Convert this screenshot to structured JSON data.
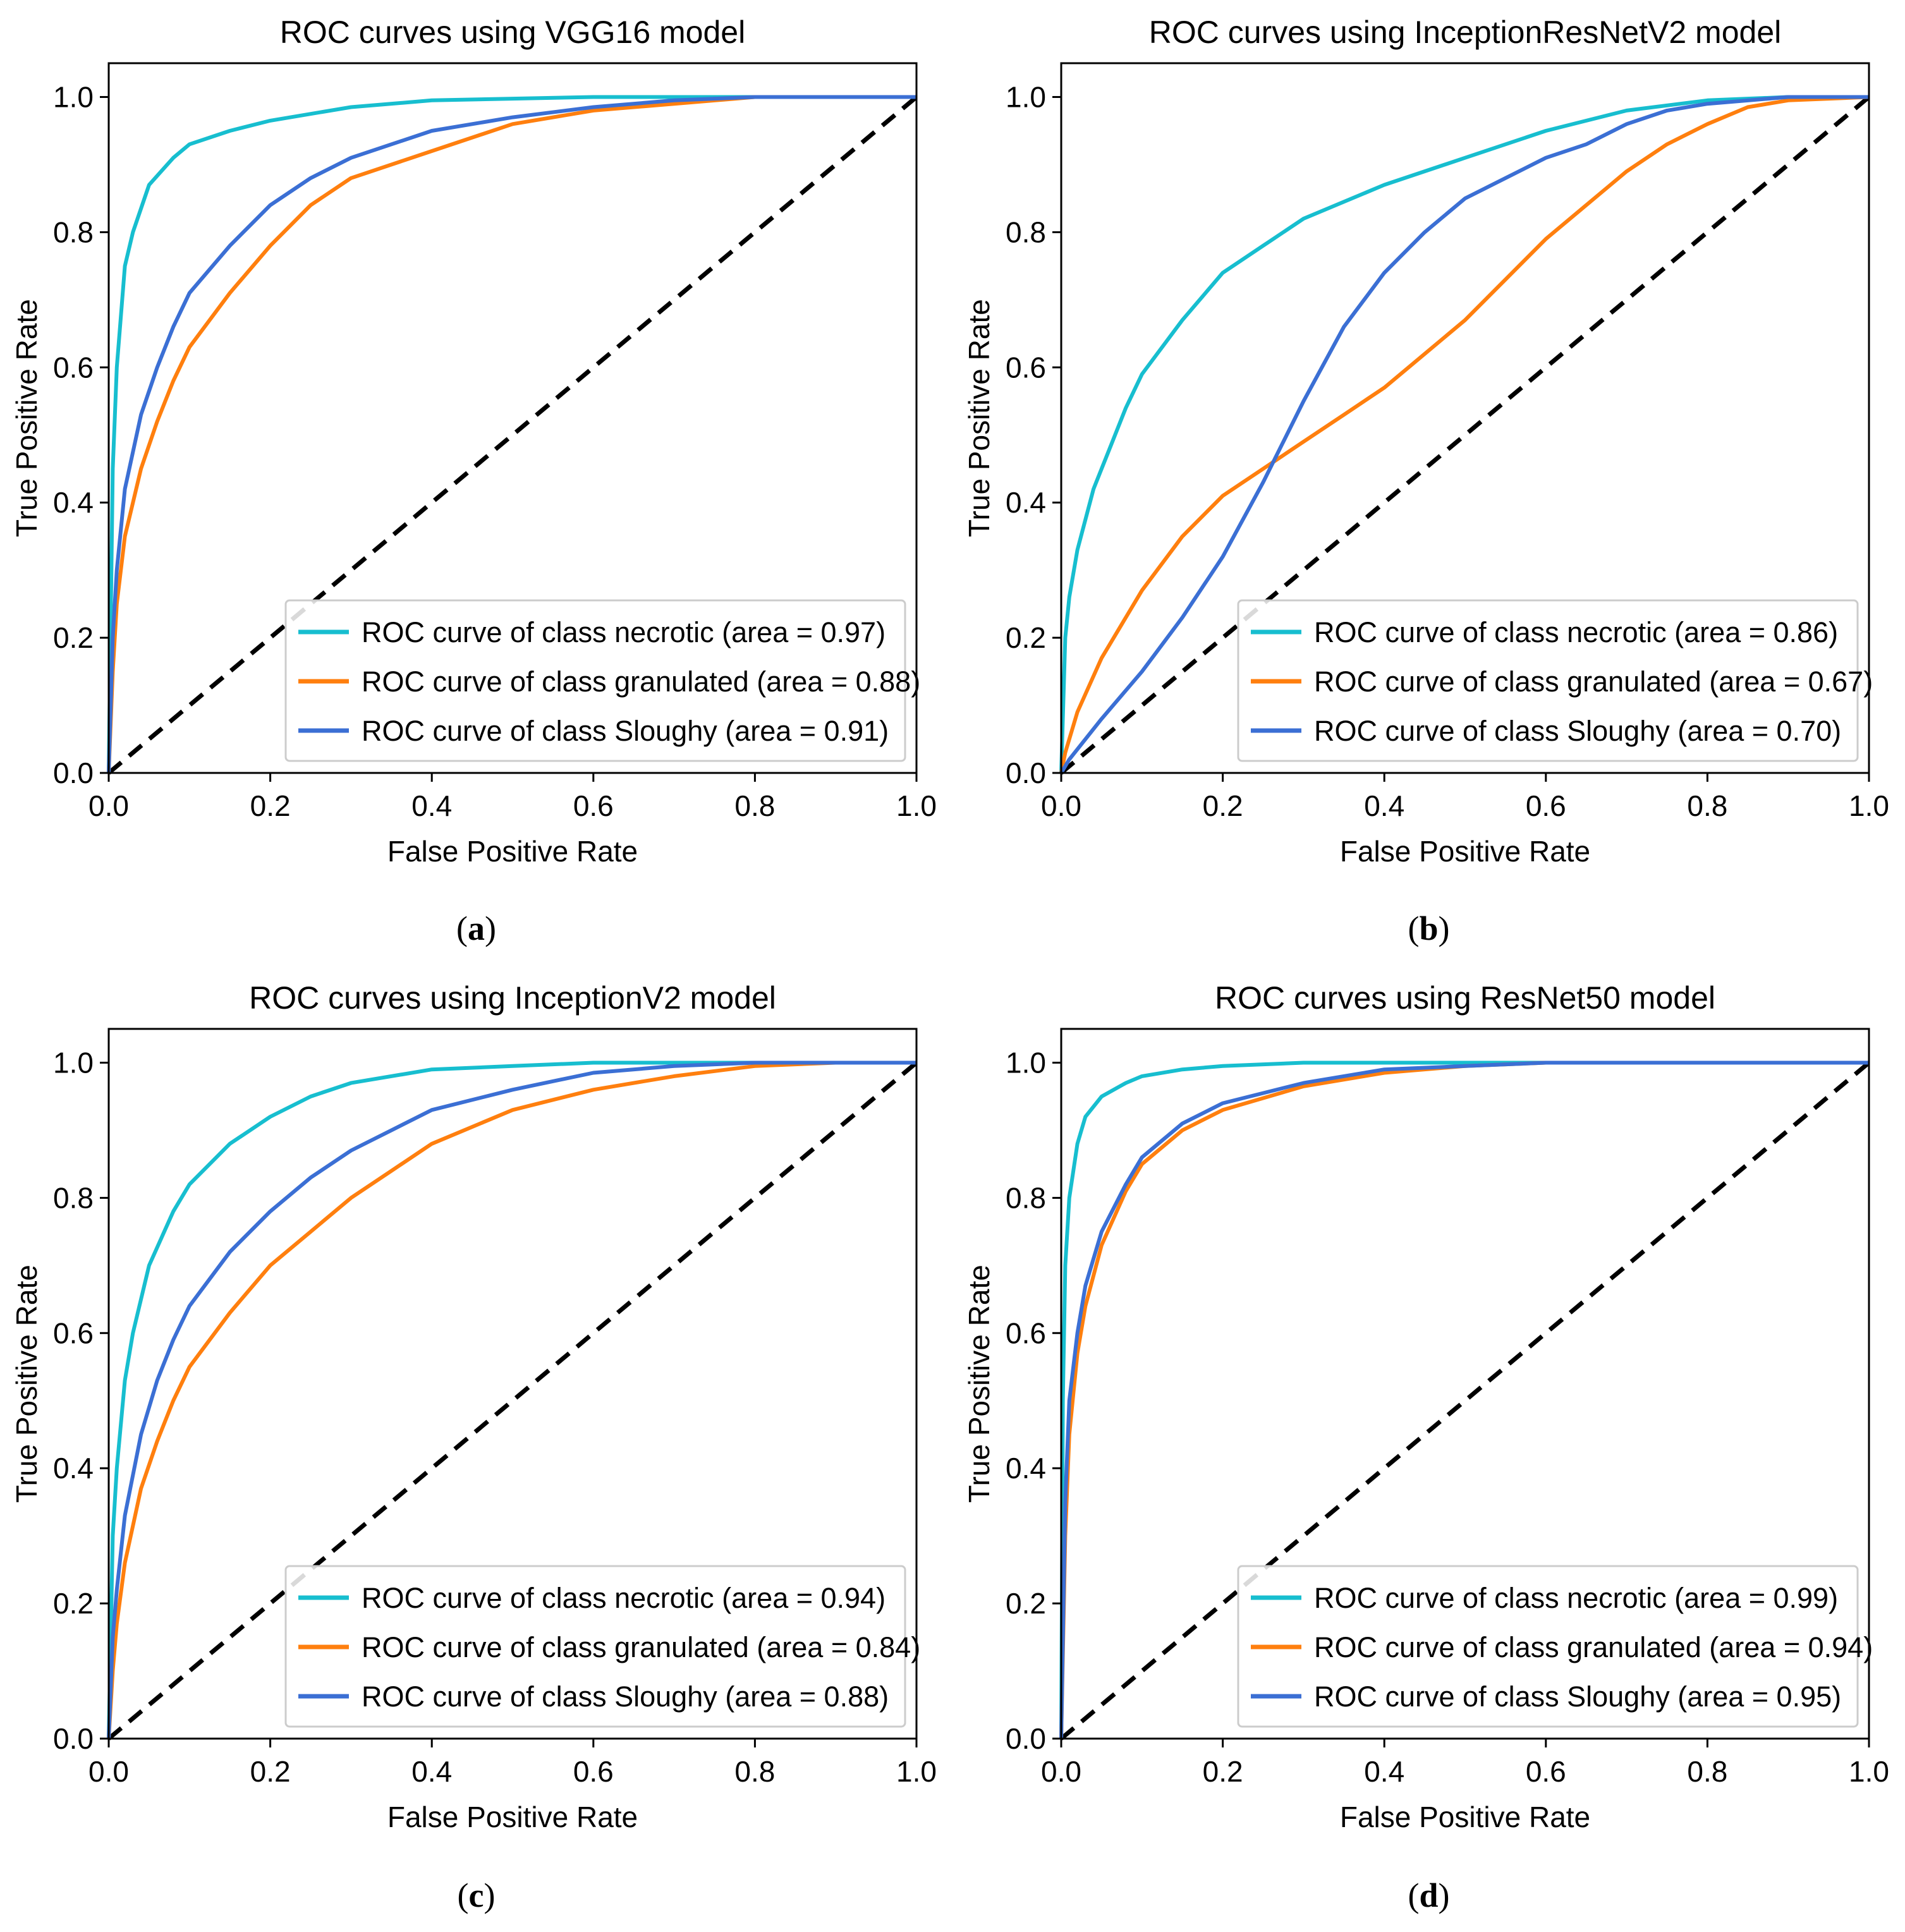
{
  "chart_data": [
    {
      "type": "line",
      "title": "ROC curves using VGG16 model",
      "xlabel": "False Positive Rate",
      "ylabel": "True Positive Rate",
      "xlim": [
        0,
        1
      ],
      "ylim": [
        0,
        1.05
      ],
      "xticks": [
        "0.0",
        "0.2",
        "0.4",
        "0.6",
        "0.8",
        "1.0"
      ],
      "yticks": [
        "0.0",
        "0.2",
        "0.4",
        "0.6",
        "0.8",
        "1.0"
      ],
      "caption": "a",
      "legend_position": "lower right",
      "series": [
        {
          "name": "ROC curve of class necrotic (area = 0.97)",
          "color": "#17becf",
          "x": [
            0,
            0.005,
            0.01,
            0.02,
            0.03,
            0.05,
            0.08,
            0.1,
            0.15,
            0.2,
            0.3,
            0.4,
            0.6,
            0.8,
            1.0
          ],
          "y": [
            0,
            0.45,
            0.6,
            0.75,
            0.8,
            0.87,
            0.91,
            0.93,
            0.95,
            0.965,
            0.985,
            0.995,
            1.0,
            1.0,
            1.0
          ]
        },
        {
          "name": "ROC curve of class granulated (area = 0.88)",
          "color": "#ff7f0e",
          "x": [
            0,
            0.005,
            0.01,
            0.02,
            0.04,
            0.06,
            0.08,
            0.1,
            0.15,
            0.2,
            0.25,
            0.3,
            0.4,
            0.5,
            0.6,
            0.7,
            0.8,
            1.0
          ],
          "y": [
            0,
            0.15,
            0.25,
            0.35,
            0.45,
            0.52,
            0.58,
            0.63,
            0.71,
            0.78,
            0.84,
            0.88,
            0.92,
            0.96,
            0.98,
            0.99,
            1.0,
            1.0
          ]
        },
        {
          "name": "ROC curve of class Sloughy (area = 0.91)",
          "color": "#3b6fd4",
          "x": [
            0,
            0.005,
            0.01,
            0.02,
            0.04,
            0.06,
            0.08,
            0.1,
            0.15,
            0.2,
            0.25,
            0.3,
            0.4,
            0.5,
            0.6,
            0.7,
            0.8,
            1.0
          ],
          "y": [
            0,
            0.2,
            0.3,
            0.42,
            0.53,
            0.6,
            0.66,
            0.71,
            0.78,
            0.84,
            0.88,
            0.91,
            0.95,
            0.97,
            0.985,
            0.995,
            1.0,
            1.0
          ]
        }
      ]
    },
    {
      "type": "line",
      "title": "ROC curves using InceptionResNetV2 model",
      "xlabel": "False Positive Rate",
      "ylabel": "True Positive Rate",
      "xlim": [
        0,
        1
      ],
      "ylim": [
        0,
        1.05
      ],
      "xticks": [
        "0.0",
        "0.2",
        "0.4",
        "0.6",
        "0.8",
        "1.0"
      ],
      "yticks": [
        "0.0",
        "0.2",
        "0.4",
        "0.6",
        "0.8",
        "1.0"
      ],
      "caption": "b",
      "legend_position": "lower right",
      "series": [
        {
          "name": "ROC curve of class necrotic (area = 0.86)",
          "color": "#17becf",
          "x": [
            0,
            0.005,
            0.01,
            0.02,
            0.04,
            0.06,
            0.08,
            0.1,
            0.15,
            0.2,
            0.25,
            0.3,
            0.4,
            0.5,
            0.6,
            0.7,
            0.8,
            0.9,
            1.0
          ],
          "y": [
            0,
            0.2,
            0.26,
            0.33,
            0.42,
            0.48,
            0.54,
            0.59,
            0.67,
            0.74,
            0.78,
            0.82,
            0.87,
            0.91,
            0.95,
            0.98,
            0.995,
            1.0,
            1.0
          ]
        },
        {
          "name": "ROC curve of class granulated (area = 0.67)",
          "color": "#ff7f0e",
          "x": [
            0,
            0.005,
            0.02,
            0.05,
            0.1,
            0.15,
            0.2,
            0.25,
            0.3,
            0.35,
            0.4,
            0.45,
            0.5,
            0.55,
            0.6,
            0.65,
            0.7,
            0.75,
            0.8,
            0.85,
            0.9,
            1.0
          ],
          "y": [
            0,
            0.03,
            0.09,
            0.17,
            0.27,
            0.35,
            0.41,
            0.45,
            0.49,
            0.53,
            0.57,
            0.62,
            0.67,
            0.73,
            0.79,
            0.84,
            0.89,
            0.93,
            0.96,
            0.985,
            0.995,
            1.0
          ]
        },
        {
          "name": "ROC curve of class Sloughy (area = 0.70)",
          "color": "#3b6fd4",
          "x": [
            0,
            0.01,
            0.05,
            0.1,
            0.15,
            0.2,
            0.25,
            0.3,
            0.35,
            0.4,
            0.45,
            0.5,
            0.55,
            0.6,
            0.65,
            0.7,
            0.75,
            0.8,
            0.9,
            1.0
          ],
          "y": [
            0,
            0.02,
            0.08,
            0.15,
            0.23,
            0.32,
            0.43,
            0.55,
            0.66,
            0.74,
            0.8,
            0.85,
            0.88,
            0.91,
            0.93,
            0.96,
            0.98,
            0.99,
            1.0,
            1.0
          ]
        }
      ]
    },
    {
      "type": "line",
      "title": "ROC curves using InceptionV2 model",
      "xlabel": "False Positive Rate",
      "ylabel": "True Positive Rate",
      "xlim": [
        0,
        1
      ],
      "ylim": [
        0,
        1.05
      ],
      "xticks": [
        "0.0",
        "0.2",
        "0.4",
        "0.6",
        "0.8",
        "1.0"
      ],
      "yticks": [
        "0.0",
        "0.2",
        "0.4",
        "0.6",
        "0.8",
        "1.0"
      ],
      "caption": "c",
      "legend_position": "lower right",
      "series": [
        {
          "name": "ROC curve of class necrotic (area = 0.94)",
          "color": "#17becf",
          "x": [
            0,
            0.005,
            0.01,
            0.02,
            0.03,
            0.05,
            0.08,
            0.1,
            0.15,
            0.2,
            0.25,
            0.3,
            0.4,
            0.5,
            0.6,
            0.7,
            1.0
          ],
          "y": [
            0,
            0.3,
            0.4,
            0.53,
            0.6,
            0.7,
            0.78,
            0.82,
            0.88,
            0.92,
            0.95,
            0.97,
            0.99,
            0.995,
            1.0,
            1.0,
            1.0
          ]
        },
        {
          "name": "ROC curve of class granulated (area = 0.84)",
          "color": "#ff7f0e",
          "x": [
            0,
            0.005,
            0.01,
            0.02,
            0.04,
            0.06,
            0.08,
            0.1,
            0.15,
            0.2,
            0.25,
            0.3,
            0.35,
            0.4,
            0.5,
            0.6,
            0.7,
            0.8,
            0.9,
            1.0
          ],
          "y": [
            0,
            0.1,
            0.17,
            0.26,
            0.37,
            0.44,
            0.5,
            0.55,
            0.63,
            0.7,
            0.75,
            0.8,
            0.84,
            0.88,
            0.93,
            0.96,
            0.98,
            0.995,
            1.0,
            1.0
          ]
        },
        {
          "name": "ROC curve of class Sloughy (area = 0.88)",
          "color": "#3b6fd4",
          "x": [
            0,
            0.005,
            0.01,
            0.02,
            0.04,
            0.06,
            0.08,
            0.1,
            0.15,
            0.2,
            0.25,
            0.3,
            0.35,
            0.4,
            0.5,
            0.6,
            0.7,
            0.8,
            1.0
          ],
          "y": [
            0,
            0.15,
            0.22,
            0.33,
            0.45,
            0.53,
            0.59,
            0.64,
            0.72,
            0.78,
            0.83,
            0.87,
            0.9,
            0.93,
            0.96,
            0.985,
            0.995,
            1.0,
            1.0
          ]
        }
      ]
    },
    {
      "type": "line",
      "title": "ROC curves using ResNet50 model",
      "xlabel": "False Positive Rate",
      "ylabel": "True Positive Rate",
      "xlim": [
        0,
        1
      ],
      "ylim": [
        0,
        1.05
      ],
      "xticks": [
        "0.0",
        "0.2",
        "0.4",
        "0.6",
        "0.8",
        "1.0"
      ],
      "yticks": [
        "0.0",
        "0.2",
        "0.4",
        "0.6",
        "0.8",
        "1.0"
      ],
      "caption": "d",
      "legend_position": "lower right",
      "series": [
        {
          "name": "ROC curve of class necrotic (area = 0.99)",
          "color": "#17becf",
          "x": [
            0,
            0.002,
            0.005,
            0.01,
            0.02,
            0.03,
            0.05,
            0.08,
            0.1,
            0.15,
            0.2,
            0.3,
            1.0
          ],
          "y": [
            0,
            0.5,
            0.7,
            0.8,
            0.88,
            0.92,
            0.95,
            0.97,
            0.98,
            0.99,
            0.995,
            1.0,
            1.0
          ]
        },
        {
          "name": "ROC curve of class granulated (area = 0.94)",
          "color": "#ff7f0e",
          "x": [
            0,
            0.005,
            0.01,
            0.02,
            0.03,
            0.05,
            0.08,
            0.1,
            0.15,
            0.2,
            0.3,
            0.4,
            0.5,
            0.6,
            1.0
          ],
          "y": [
            0,
            0.3,
            0.45,
            0.57,
            0.64,
            0.73,
            0.81,
            0.85,
            0.9,
            0.93,
            0.965,
            0.985,
            0.995,
            1.0,
            1.0
          ]
        },
        {
          "name": "ROC curve of class Sloughy (area = 0.95)",
          "color": "#3b6fd4",
          "x": [
            0,
            0.005,
            0.01,
            0.02,
            0.03,
            0.05,
            0.08,
            0.1,
            0.15,
            0.2,
            0.3,
            0.4,
            0.5,
            0.6,
            1.0
          ],
          "y": [
            0,
            0.35,
            0.5,
            0.6,
            0.67,
            0.75,
            0.82,
            0.86,
            0.91,
            0.94,
            0.97,
            0.99,
            0.995,
            1.0,
            1.0
          ]
        }
      ]
    }
  ]
}
